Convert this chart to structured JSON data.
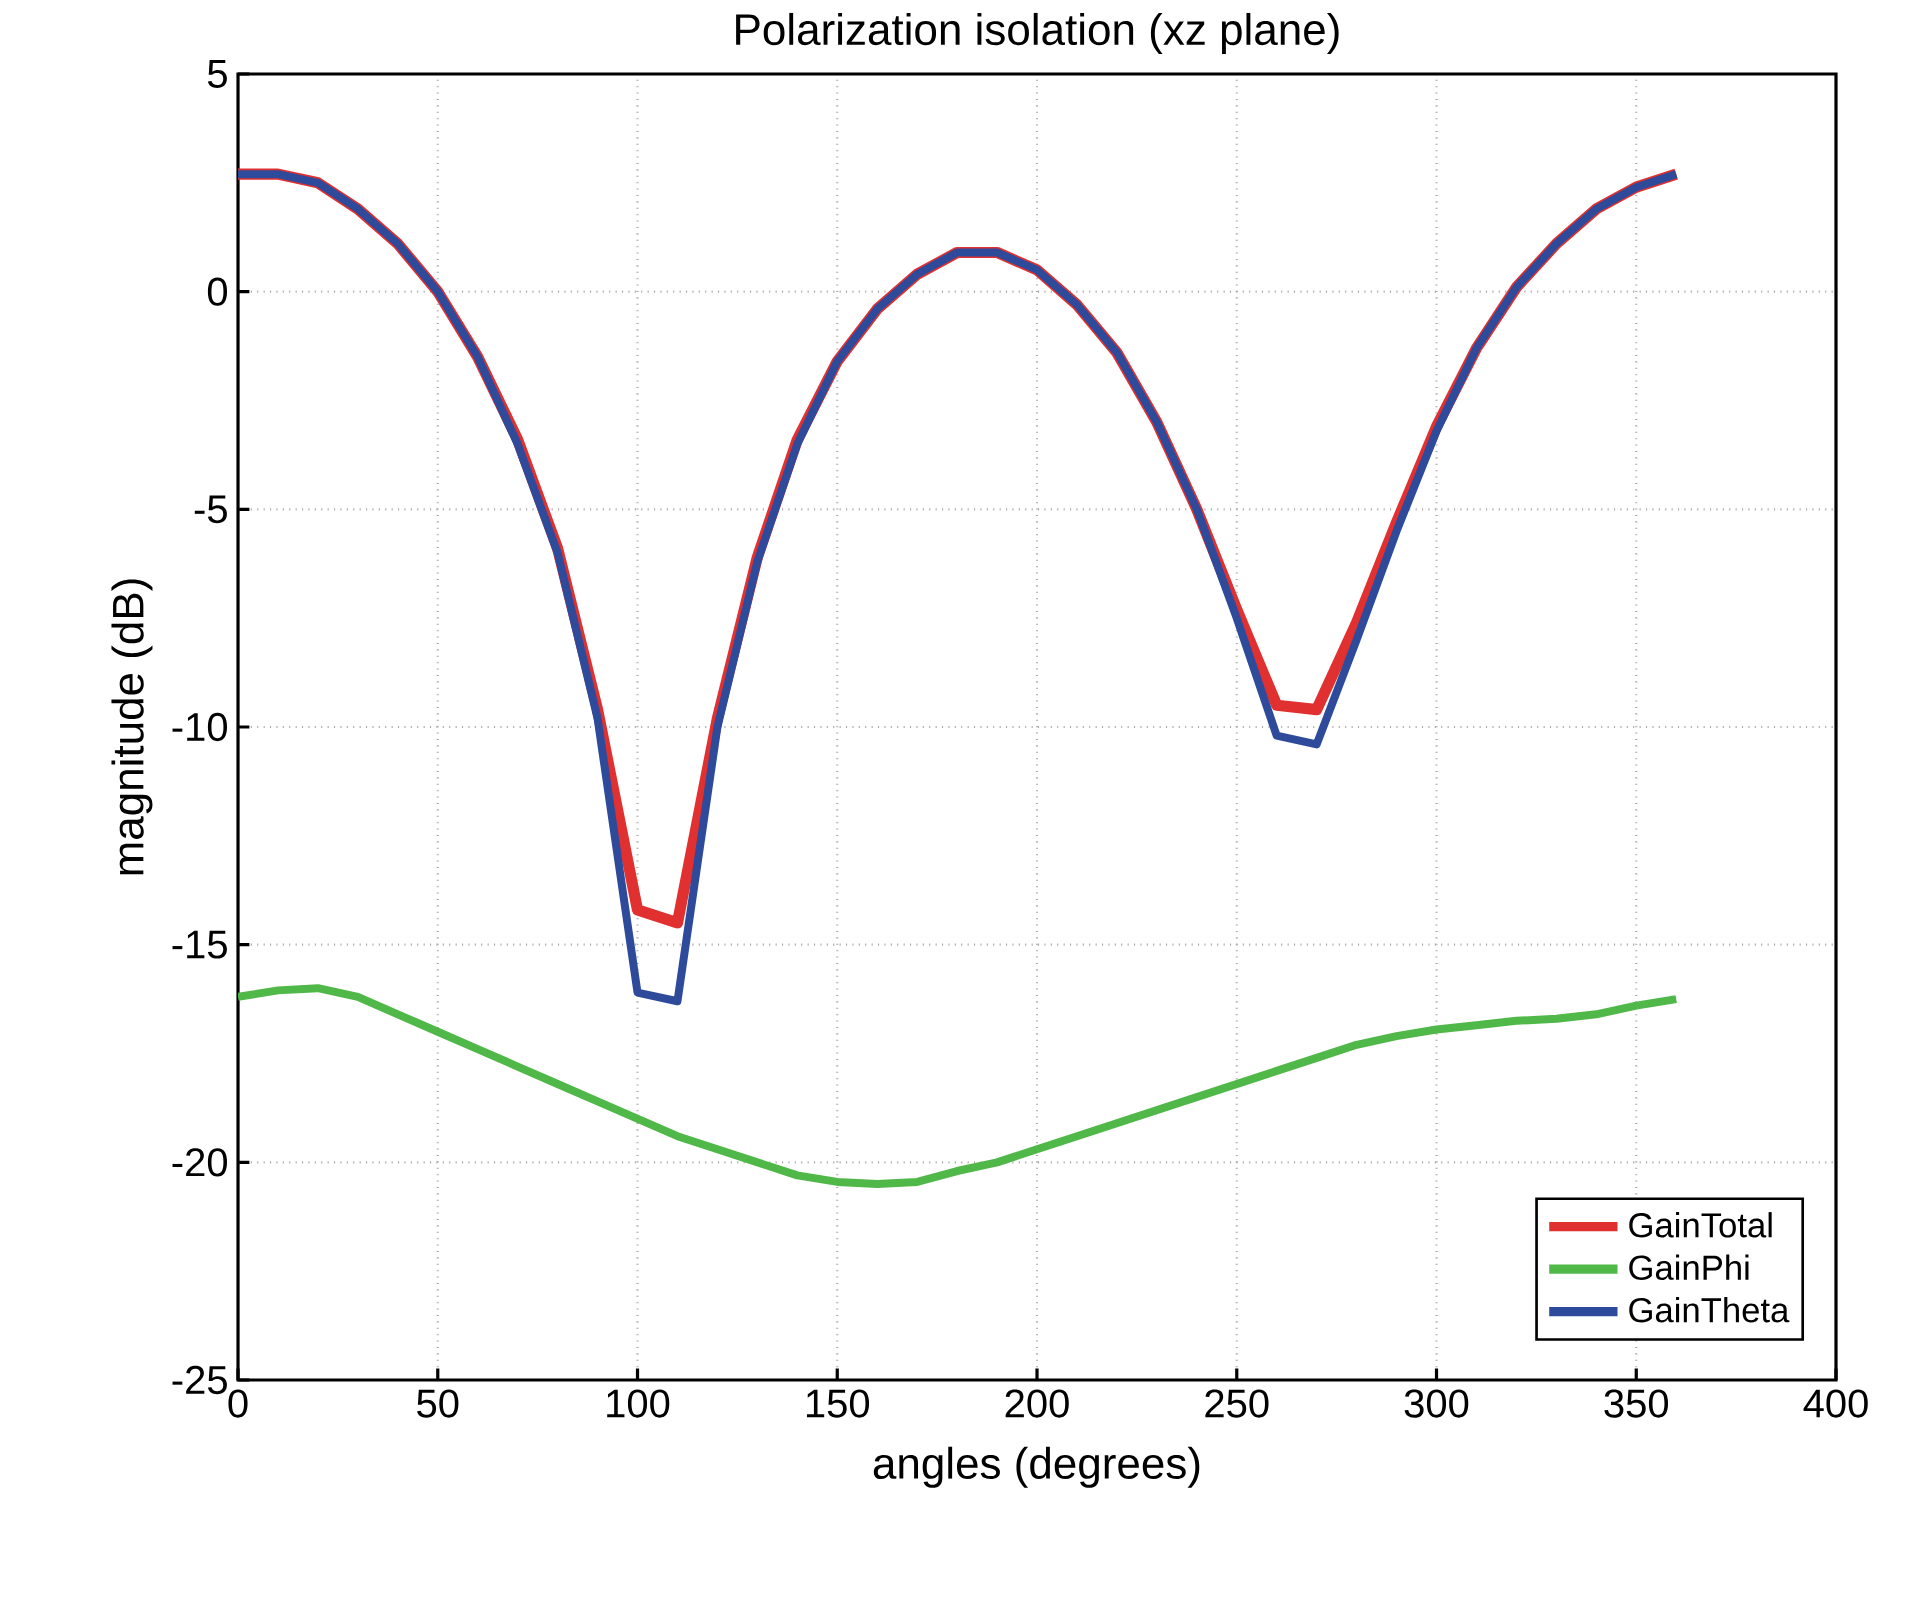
{
  "chart_data": {
    "type": "line",
    "title": "Polarization isolation (xz plane)",
    "xlabel": "angles (degrees)",
    "ylabel": "magnitude (dB)",
    "x": [
      0,
      10,
      20,
      30,
      40,
      50,
      60,
      70,
      80,
      90,
      100,
      110,
      120,
      130,
      140,
      150,
      160,
      170,
      180,
      190,
      200,
      210,
      220,
      230,
      240,
      250,
      260,
      270,
      280,
      290,
      300,
      310,
      320,
      330,
      340,
      350,
      360
    ],
    "series": [
      {
        "name": "GainTotal",
        "color": "#e03030",
        "values": [
          2.7,
          2.7,
          2.5,
          1.9,
          1.1,
          0.0,
          -1.5,
          -3.4,
          -5.9,
          -9.6,
          -14.2,
          -14.5,
          -9.8,
          -6.1,
          -3.4,
          -1.6,
          -0.4,
          0.4,
          0.9,
          0.9,
          0.5,
          -0.3,
          -1.4,
          -3.0,
          -5.0,
          -7.3,
          -9.5,
          -9.6,
          -7.6,
          -5.3,
          -3.1,
          -1.3,
          0.1,
          1.1,
          1.9,
          2.4,
          2.7
        ]
      },
      {
        "name": "GainPhi",
        "color": "#50b848",
        "values": [
          -16.2,
          -16.05,
          -16.0,
          -16.2,
          -16.6,
          -17.0,
          -17.4,
          -17.8,
          -18.2,
          -18.6,
          -19.0,
          -19.4,
          -19.7,
          -20.0,
          -20.3,
          -20.45,
          -20.5,
          -20.45,
          -20.2,
          -20.0,
          -19.7,
          -19.4,
          -19.1,
          -18.8,
          -18.5,
          -18.2,
          -17.9,
          -17.6,
          -17.3,
          -17.1,
          -16.95,
          -16.85,
          -16.75,
          -16.7,
          -16.6,
          -16.4,
          -16.25
        ]
      },
      {
        "name": "GainTheta",
        "color": "#2e4a9a",
        "values": [
          2.7,
          2.7,
          2.5,
          1.9,
          1.1,
          0.0,
          -1.5,
          -3.5,
          -6.0,
          -9.8,
          -16.1,
          -16.3,
          -10.0,
          -6.2,
          -3.5,
          -1.6,
          -0.4,
          0.4,
          0.9,
          0.9,
          0.5,
          -0.3,
          -1.4,
          -3.0,
          -5.0,
          -7.5,
          -10.2,
          -10.4,
          -8.0,
          -5.5,
          -3.2,
          -1.3,
          0.1,
          1.1,
          1.9,
          2.4,
          2.7
        ]
      }
    ],
    "xlim": [
      0,
      400
    ],
    "ylim": [
      -25,
      5
    ],
    "xticks": [
      0,
      50,
      100,
      150,
      200,
      250,
      300,
      350,
      400
    ],
    "yticks": [
      -25,
      -20,
      -15,
      -10,
      -5,
      0,
      5
    ],
    "grid": true,
    "legend": "bottom right"
  }
}
